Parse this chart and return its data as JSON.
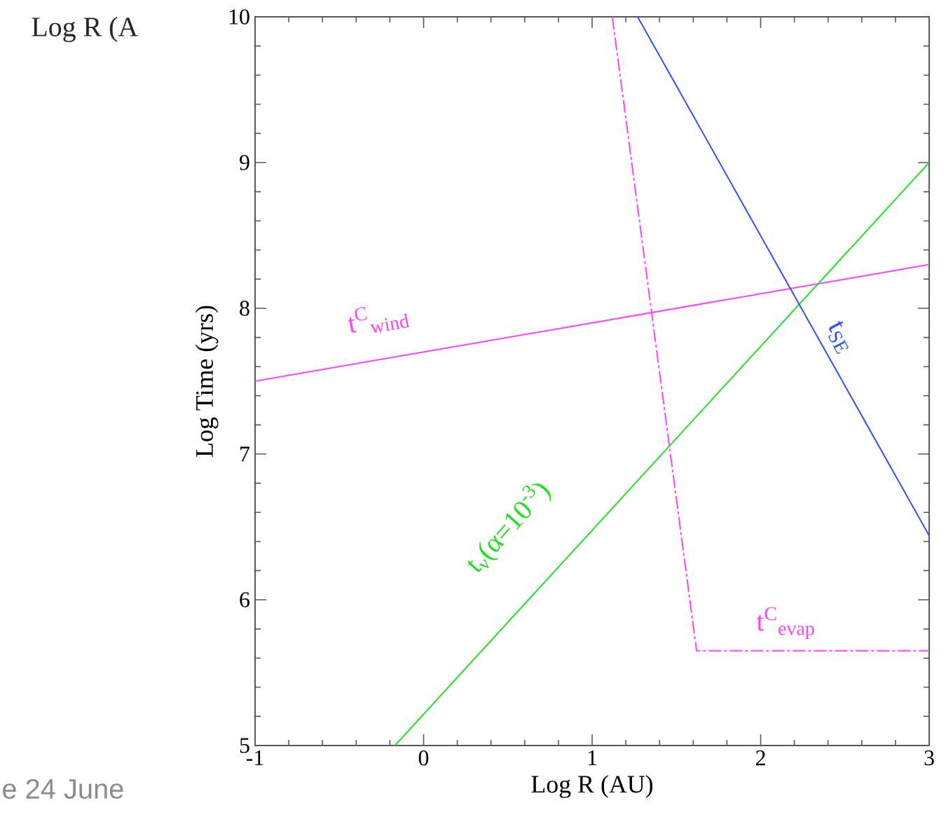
{
  "chart_data": {
    "type": "line",
    "xlabel": "Log R (AU)",
    "ylabel": "Log Time (yrs)",
    "xlim": [
      -1,
      3
    ],
    "ylim": [
      5,
      10
    ],
    "xticks": [
      -1,
      0,
      1,
      2,
      3
    ],
    "yticks": [
      5,
      6,
      7,
      8,
      9,
      10
    ],
    "series": [
      {
        "name": "t$^{C}$$_{wind}$",
        "color": "#ff40ff",
        "line_style": "solid",
        "x": [
          -1,
          3
        ],
        "values": [
          7.5,
          8.3
        ]
      },
      {
        "name": "t$_{ν}$(α=10$^{-3}$)",
        "color": "#20e020",
        "line_style": "solid",
        "x": [
          -0.17,
          3
        ],
        "values": [
          5,
          9
        ]
      },
      {
        "name": "t$_{SE}$",
        "color": "#3050f0",
        "line_style": "solid",
        "x": [
          1.27,
          3
        ],
        "values": [
          10,
          6.44
        ]
      },
      {
        "name": "t$^{C}$$_{evap}$",
        "color": "#ff40ff",
        "line_style": "dashed",
        "x": [
          1.12,
          1.62,
          3
        ],
        "values": [
          10,
          5.65,
          5.65
        ]
      }
    ],
    "annotations": [
      "Log R (A",
      "e 24 June"
    ]
  }
}
